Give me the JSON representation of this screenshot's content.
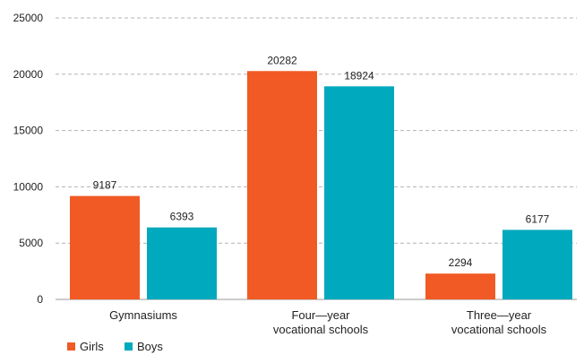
{
  "chart_data": {
    "type": "bar",
    "categories": [
      [
        "Gymnasiums"
      ],
      [
        "Four—year",
        "vocational schools"
      ],
      [
        "Three—year",
        "vocational schools"
      ]
    ],
    "series": [
      {
        "name": "Girls",
        "color": "#f15a24",
        "values": [
          9187,
          20282,
          2294
        ]
      },
      {
        "name": "Boys",
        "color": "#00a9bd",
        "values": [
          6393,
          18924,
          6177
        ]
      }
    ],
    "ylim": [
      0,
      25000
    ],
    "yticks": [
      0,
      5000,
      10000,
      15000,
      20000,
      25000
    ],
    "grid": true,
    "legend_position": "bottom-left",
    "title": "",
    "xlabel": "",
    "ylabel": ""
  }
}
